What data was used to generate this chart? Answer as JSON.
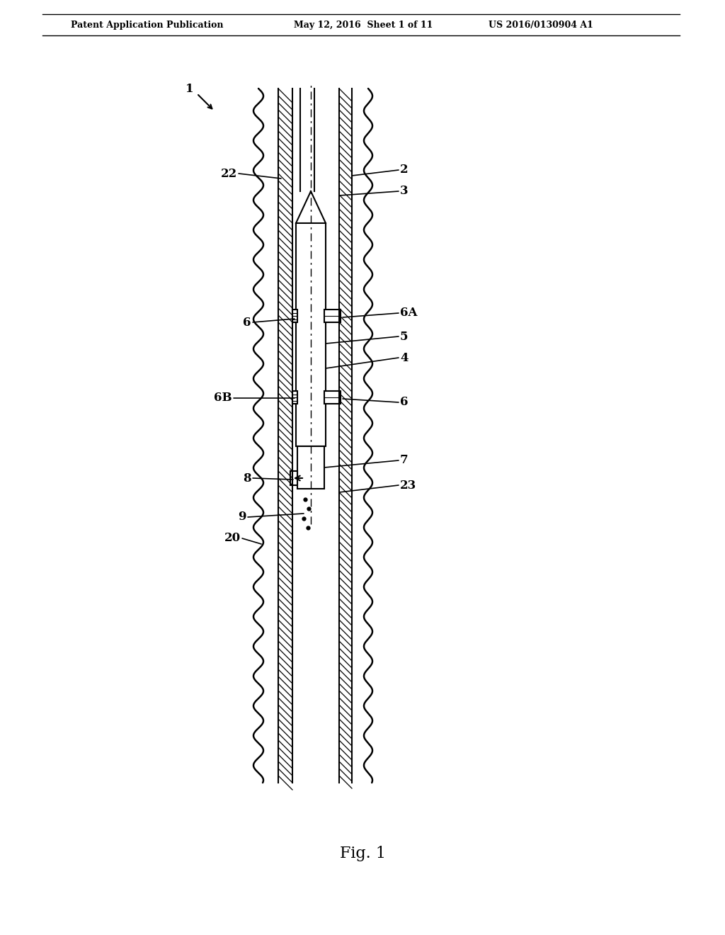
{
  "bg_color": "#ffffff",
  "line_color": "#000000",
  "header_left": "Patent Application Publication",
  "header_mid": "May 12, 2016  Sheet 1 of 11",
  "header_right": "US 2016/0130904 A1",
  "fig_label": "Fig. 1",
  "label_1": "1",
  "label_2": "2",
  "label_3": "3",
  "label_4": "4",
  "label_5": "5",
  "label_6": "6",
  "label_6A": "6A",
  "label_6B": "6B",
  "label_7": "7",
  "label_8": "8",
  "label_9": "9",
  "label_20": "20",
  "label_22": "22",
  "label_23": "23"
}
